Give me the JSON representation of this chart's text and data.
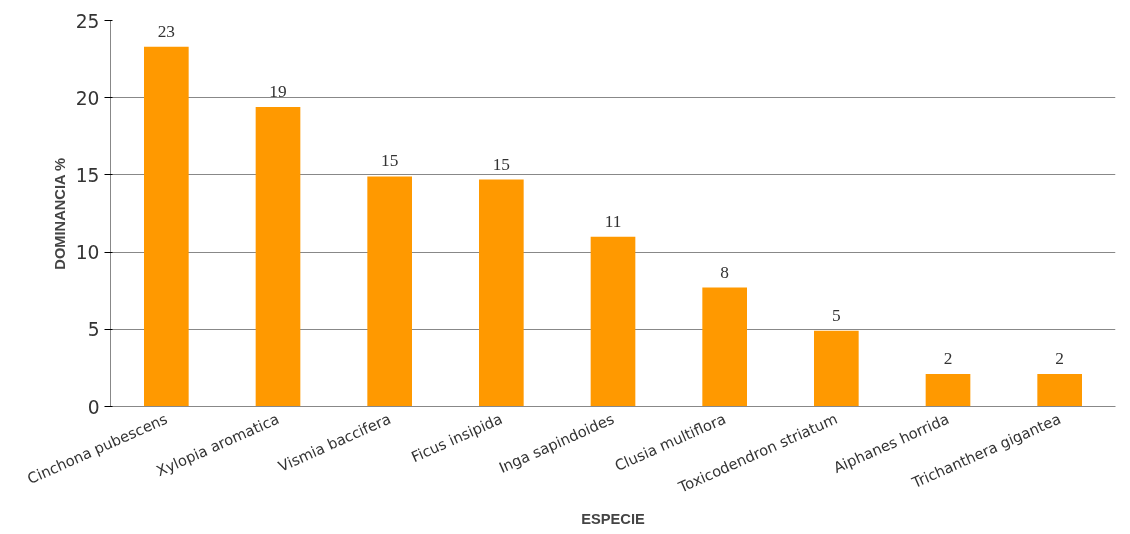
{
  "chart_data": {
    "type": "bar",
    "xlabel": "ESPECIE",
    "ylabel": "DOMINANCIA %",
    "categories": [
      "Cinchona pubescens",
      "Xylopia aromatica",
      "Vismia baccifera",
      "Ficus insipida",
      "Inga sapindoides",
      "Clusia multiflora",
      "Toxicodendron striatum",
      "Aiphanes horrida",
      "Trichanthera gigantea"
    ],
    "values": [
      23.3,
      19.4,
      14.9,
      14.7,
      11.0,
      7.7,
      4.9,
      2.1,
      2.1
    ],
    "value_labels": [
      "23",
      "19",
      "15",
      "15",
      "11",
      "8",
      "5",
      "2",
      "2"
    ],
    "color": "#ff9900",
    "ylim": [
      0,
      25
    ],
    "yticks": [
      0,
      5,
      10,
      15,
      20,
      25
    ],
    "grid": "y"
  }
}
